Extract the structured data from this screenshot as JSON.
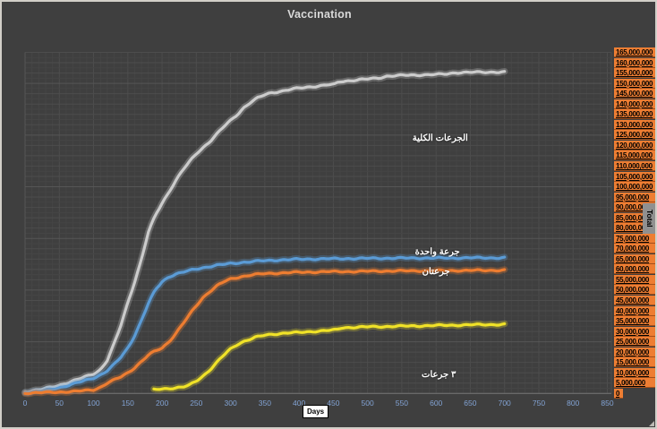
{
  "window": {
    "background": "#3f3f3f",
    "border_color": "#d2cfc8"
  },
  "chart": {
    "title": "Vaccination",
    "x_axis": {
      "label": "Days",
      "ticks": [
        "0",
        "50",
        "100",
        "150",
        "200",
        "250",
        "300",
        "350",
        "400",
        "450",
        "500",
        "550",
        "600",
        "650",
        "700",
        "750",
        "800",
        "850"
      ],
      "tick_color": "#82a3d4"
    },
    "y_axis": {
      "title": "Total",
      "title_bg": "#909090",
      "label_bg": "#ee7e33",
      "label_color": "#000000",
      "labels": [
        "165,000,000",
        "160,000,000",
        "155,000,000",
        "150,000,000",
        "145,000,000",
        "140,000,000",
        "135,000,000",
        "130,000,000",
        "125,000,000",
        "120,000,000",
        "115,000,000",
        "110,000,000",
        "105,000,000",
        "100,000,000",
        "95,000,000",
        "90,000,000",
        "85,000,000",
        "80,000,000",
        "75,000,000",
        "70,000,000",
        "65,000,000",
        "60,000,000",
        "55,000,000",
        "50,000,000",
        "45,000,000",
        "40,000,000",
        "35,000,000",
        "30,000,000",
        "25,000,000",
        "20,000,000",
        "15,000,000",
        "10,000,000",
        "5,000,000",
        "0"
      ]
    }
  },
  "chart_data": {
    "type": "line",
    "title": "Vaccination",
    "xlabel": "Days",
    "ylabel": "Total",
    "xlim": [
      0,
      850
    ],
    "ylim": [
      0,
      165000000
    ],
    "x_major_step": 50,
    "x_minor_step": 10,
    "y_major_step": 5000000,
    "y_minor_step": 2500000,
    "grid": true,
    "legend": "none",
    "series": [
      {
        "name": "الجرعات الكلية",
        "color": "#cbcbcb",
        "points": [
          [
            0,
            800000
          ],
          [
            25,
            2000000
          ],
          [
            50,
            4000000
          ],
          [
            75,
            6500000
          ],
          [
            100,
            9500000
          ],
          [
            110,
            11500000
          ],
          [
            120,
            16000000
          ],
          [
            130,
            24000000
          ],
          [
            140,
            33000000
          ],
          [
            150,
            44000000
          ],
          [
            160,
            54000000
          ],
          [
            170,
            65000000
          ],
          [
            180,
            78000000
          ],
          [
            190,
            86000000
          ],
          [
            200,
            92000000
          ],
          [
            210,
            97500000
          ],
          [
            220,
            103000000
          ],
          [
            230,
            108000000
          ],
          [
            240,
            112000000
          ],
          [
            250,
            116000000
          ],
          [
            260,
            119000000
          ],
          [
            270,
            122000000
          ],
          [
            280,
            125500000
          ],
          [
            290,
            129000000
          ],
          [
            300,
            132000000
          ],
          [
            310,
            135000000
          ],
          [
            320,
            138500000
          ],
          [
            330,
            141000000
          ],
          [
            340,
            143000000
          ],
          [
            350,
            144500000
          ],
          [
            360,
            145500000
          ],
          [
            375,
            146300000
          ],
          [
            390,
            147200000
          ],
          [
            400,
            147700000
          ],
          [
            415,
            148300000
          ],
          [
            430,
            148800000
          ],
          [
            445,
            149400000
          ],
          [
            452,
            149500000
          ],
          [
            458,
            150800000
          ],
          [
            470,
            151200000
          ],
          [
            485,
            151700000
          ],
          [
            500,
            152100000
          ],
          [
            515,
            152500000
          ],
          [
            528,
            153500000
          ],
          [
            540,
            153700000
          ],
          [
            555,
            153900000
          ],
          [
            570,
            154000000
          ],
          [
            585,
            154200000
          ],
          [
            600,
            154300000
          ],
          [
            615,
            154500000
          ],
          [
            628,
            155200000
          ],
          [
            640,
            155300000
          ],
          [
            655,
            155400000
          ],
          [
            670,
            155400000
          ],
          [
            685,
            155500000
          ],
          [
            700,
            155500000
          ]
        ]
      },
      {
        "name": "جرعة واحدة",
        "color": "#5b9bd5",
        "points": [
          [
            0,
            500000
          ],
          [
            25,
            1200000
          ],
          [
            50,
            2800000
          ],
          [
            75,
            5000000
          ],
          [
            100,
            7500000
          ],
          [
            110,
            9000000
          ],
          [
            120,
            11000000
          ],
          [
            130,
            14000000
          ],
          [
            140,
            17500000
          ],
          [
            150,
            22000000
          ],
          [
            160,
            28000000
          ],
          [
            170,
            35500000
          ],
          [
            180,
            43500000
          ],
          [
            190,
            50000000
          ],
          [
            200,
            54000000
          ],
          [
            210,
            56500000
          ],
          [
            220,
            57800000
          ],
          [
            235,
            59000000
          ],
          [
            250,
            60200000
          ],
          [
            265,
            61200000
          ],
          [
            280,
            62000000
          ],
          [
            300,
            62800000
          ],
          [
            320,
            63500000
          ],
          [
            340,
            64000000
          ],
          [
            360,
            64400000
          ],
          [
            380,
            64700000
          ],
          [
            400,
            64900000
          ],
          [
            430,
            65100000
          ],
          [
            460,
            65200000
          ],
          [
            490,
            65300000
          ],
          [
            520,
            65400000
          ],
          [
            560,
            65500000
          ],
          [
            600,
            65500000
          ],
          [
            650,
            65600000
          ],
          [
            700,
            65600000
          ]
        ]
      },
      {
        "name": "جرعتان",
        "color": "#ed7d31",
        "points": [
          [
            0,
            200000
          ],
          [
            25,
            400000
          ],
          [
            50,
            700000
          ],
          [
            75,
            1000000
          ],
          [
            100,
            1800000
          ],
          [
            110,
            3000000
          ],
          [
            120,
            5000000
          ],
          [
            130,
            6500000
          ],
          [
            140,
            8000000
          ],
          [
            150,
            10000000
          ],
          [
            160,
            12500000
          ],
          [
            170,
            15500000
          ],
          [
            180,
            18500000
          ],
          [
            190,
            20500000
          ],
          [
            200,
            22000000
          ],
          [
            210,
            25000000
          ],
          [
            220,
            29000000
          ],
          [
            230,
            33500000
          ],
          [
            240,
            38000000
          ],
          [
            250,
            42500000
          ],
          [
            260,
            46500000
          ],
          [
            270,
            49500000
          ],
          [
            280,
            52000000
          ],
          [
            290,
            54000000
          ],
          [
            300,
            55300000
          ],
          [
            315,
            56500000
          ],
          [
            330,
            57300000
          ],
          [
            345,
            57800000
          ],
          [
            360,
            58100000
          ],
          [
            380,
            58400000
          ],
          [
            400,
            58600000
          ],
          [
            440,
            58900000
          ],
          [
            480,
            59000000
          ],
          [
            520,
            59200000
          ],
          [
            560,
            59300000
          ],
          [
            600,
            59400000
          ],
          [
            650,
            59500000
          ],
          [
            700,
            59600000
          ]
        ]
      },
      {
        "name": "٣ جرعات",
        "color": "#f0e228",
        "points": [
          [
            188,
            1800000
          ],
          [
            200,
            2200000
          ],
          [
            215,
            2600000
          ],
          [
            230,
            3000000
          ],
          [
            240,
            4000000
          ],
          [
            250,
            6000000
          ],
          [
            260,
            8500000
          ],
          [
            270,
            11500000
          ],
          [
            280,
            15000000
          ],
          [
            290,
            18500000
          ],
          [
            300,
            21500000
          ],
          [
            310,
            23800000
          ],
          [
            320,
            25300000
          ],
          [
            335,
            27000000
          ],
          [
            350,
            28200000
          ],
          [
            365,
            28800000
          ],
          [
            380,
            29200000
          ],
          [
            400,
            29500000
          ],
          [
            420,
            30000000
          ],
          [
            440,
            30400000
          ],
          [
            455,
            30800000
          ],
          [
            462,
            31800000
          ],
          [
            480,
            32000000
          ],
          [
            500,
            32200000
          ],
          [
            530,
            32400000
          ],
          [
            560,
            32600000
          ],
          [
            590,
            32800000
          ],
          [
            620,
            33000000
          ],
          [
            650,
            33200000
          ],
          [
            675,
            33300000
          ],
          [
            700,
            33400000
          ]
        ]
      }
    ],
    "annotations": [
      {
        "text": "الجرعات الكلية",
        "x": 606,
        "y": 123000000
      },
      {
        "text": "جرعة واحدة",
        "x": 602,
        "y": 68300000
      },
      {
        "text": "جرعتان",
        "x": 600,
        "y": 58800000
      },
      {
        "text": "٣ جرعات",
        "x": 604,
        "y": 8700000
      }
    ]
  },
  "colors": {
    "grid_minor": "#454545",
    "grid_major": "#4d4d4d",
    "grid_bright": "#565656",
    "axis_line": "#6e6e6e",
    "title_text": "#d9d9d9"
  }
}
